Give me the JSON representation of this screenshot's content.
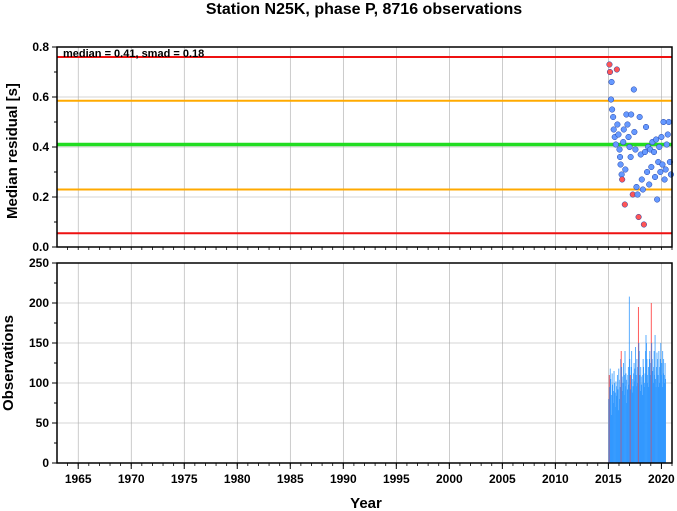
{
  "chart_data": [
    {
      "type": "scatter",
      "title": "Station N25K, phase P, 8716 observations",
      "ylabel": "Median residual [s]",
      "xlim": [
        1963,
        2021
      ],
      "ylim": [
        0,
        0.8
      ],
      "yticks": [
        "0.0",
        "0.2",
        "0.4",
        "0.6",
        "0.8"
      ],
      "grid": true,
      "annotation": "median = 0.41, smad = 0.18",
      "reference_lines": [
        {
          "y": 0.41,
          "color": "#22dd22"
        },
        {
          "y": 0.585,
          "color": "#ffaa00"
        },
        {
          "y": 0.23,
          "color": "#ffaa00"
        },
        {
          "y": 0.76,
          "color": "#ee1111"
        },
        {
          "y": 0.055,
          "color": "#ee1111"
        }
      ],
      "colors": {
        "normal": "#6699ff",
        "outlier": "#ff5555"
      },
      "points": [
        {
          "x": 2015.1,
          "y": 0.73,
          "outlier": true
        },
        {
          "x": 2015.15,
          "y": 0.7,
          "outlier": true
        },
        {
          "x": 2015.3,
          "y": 0.66,
          "outlier": false
        },
        {
          "x": 2015.25,
          "y": 0.59,
          "outlier": false
        },
        {
          "x": 2015.35,
          "y": 0.55,
          "outlier": false
        },
        {
          "x": 2015.45,
          "y": 0.52,
          "outlier": false
        },
        {
          "x": 2015.5,
          "y": 0.47,
          "outlier": false
        },
        {
          "x": 2015.6,
          "y": 0.44,
          "outlier": false
        },
        {
          "x": 2015.7,
          "y": 0.41,
          "outlier": false
        },
        {
          "x": 2015.8,
          "y": 0.71,
          "outlier": true
        },
        {
          "x": 2015.85,
          "y": 0.49,
          "outlier": false
        },
        {
          "x": 2015.95,
          "y": 0.45,
          "outlier": false
        },
        {
          "x": 2016.05,
          "y": 0.39,
          "outlier": false
        },
        {
          "x": 2016.1,
          "y": 0.36,
          "outlier": false
        },
        {
          "x": 2016.15,
          "y": 0.33,
          "outlier": false
        },
        {
          "x": 2016.25,
          "y": 0.29,
          "outlier": false
        },
        {
          "x": 2016.3,
          "y": 0.27,
          "outlier": true
        },
        {
          "x": 2016.4,
          "y": 0.42,
          "outlier": false
        },
        {
          "x": 2016.45,
          "y": 0.47,
          "outlier": false
        },
        {
          "x": 2016.55,
          "y": 0.17,
          "outlier": true
        },
        {
          "x": 2016.6,
          "y": 0.31,
          "outlier": false
        },
        {
          "x": 2016.7,
          "y": 0.53,
          "outlier": false
        },
        {
          "x": 2016.8,
          "y": 0.49,
          "outlier": false
        },
        {
          "x": 2016.9,
          "y": 0.44,
          "outlier": false
        },
        {
          "x": 2017.0,
          "y": 0.4,
          "outlier": false
        },
        {
          "x": 2017.1,
          "y": 0.36,
          "outlier": false
        },
        {
          "x": 2017.15,
          "y": 0.53,
          "outlier": false
        },
        {
          "x": 2017.3,
          "y": 0.21,
          "outlier": true
        },
        {
          "x": 2017.4,
          "y": 0.63,
          "outlier": false
        },
        {
          "x": 2017.45,
          "y": 0.46,
          "outlier": false
        },
        {
          "x": 2017.55,
          "y": 0.39,
          "outlier": false
        },
        {
          "x": 2017.65,
          "y": 0.24,
          "outlier": false
        },
        {
          "x": 2017.75,
          "y": 0.21,
          "outlier": false
        },
        {
          "x": 2017.85,
          "y": 0.12,
          "outlier": true
        },
        {
          "x": 2017.95,
          "y": 0.52,
          "outlier": false
        },
        {
          "x": 2018.05,
          "y": 0.37,
          "outlier": false
        },
        {
          "x": 2018.15,
          "y": 0.27,
          "outlier": false
        },
        {
          "x": 2018.25,
          "y": 0.23,
          "outlier": false
        },
        {
          "x": 2018.35,
          "y": 0.09,
          "outlier": true
        },
        {
          "x": 2018.45,
          "y": 0.38,
          "outlier": false
        },
        {
          "x": 2018.55,
          "y": 0.48,
          "outlier": false
        },
        {
          "x": 2018.65,
          "y": 0.3,
          "outlier": false
        },
        {
          "x": 2018.75,
          "y": 0.4,
          "outlier": false
        },
        {
          "x": 2018.85,
          "y": 0.25,
          "outlier": false
        },
        {
          "x": 2018.95,
          "y": 0.39,
          "outlier": false
        },
        {
          "x": 2019.05,
          "y": 0.32,
          "outlier": false
        },
        {
          "x": 2019.15,
          "y": 0.42,
          "outlier": false
        },
        {
          "x": 2019.3,
          "y": 0.38,
          "outlier": false
        },
        {
          "x": 2019.4,
          "y": 0.28,
          "outlier": false
        },
        {
          "x": 2019.5,
          "y": 0.43,
          "outlier": false
        },
        {
          "x": 2019.6,
          "y": 0.19,
          "outlier": false
        },
        {
          "x": 2019.7,
          "y": 0.34,
          "outlier": false
        },
        {
          "x": 2019.8,
          "y": 0.4,
          "outlier": false
        },
        {
          "x": 2019.9,
          "y": 0.3,
          "outlier": false
        },
        {
          "x": 2020.0,
          "y": 0.44,
          "outlier": false
        },
        {
          "x": 2020.1,
          "y": 0.33,
          "outlier": false
        },
        {
          "x": 2020.2,
          "y": 0.5,
          "outlier": false
        },
        {
          "x": 2020.3,
          "y": 0.27,
          "outlier": false
        },
        {
          "x": 2020.4,
          "y": 0.31,
          "outlier": false
        },
        {
          "x": 2020.5,
          "y": 0.41,
          "outlier": false
        },
        {
          "x": 2020.6,
          "y": 0.45,
          "outlier": false
        },
        {
          "x": 2020.7,
          "y": 0.5,
          "outlier": false
        },
        {
          "x": 2020.8,
          "y": 0.34,
          "outlier": false
        },
        {
          "x": 2020.9,
          "y": 0.29,
          "outlier": false
        }
      ]
    },
    {
      "type": "bar",
      "xlabel": "Year",
      "ylabel": "Observations",
      "xlim": [
        1963,
        2021
      ],
      "ylim": [
        0,
        250
      ],
      "xticks": [
        "1965",
        "1970",
        "1975",
        "1980",
        "1985",
        "1990",
        "1995",
        "2000",
        "2005",
        "2010",
        "2015",
        "2020"
      ],
      "yticks": [
        "0",
        "50",
        "100",
        "150",
        "200",
        "250"
      ],
      "grid": true,
      "colors": {
        "normal": "#3399ff",
        "outlier": "#ff3333"
      },
      "bar_start": 2015.0,
      "bar_width_years": 0.045,
      "values": [
        80,
        110,
        95,
        118,
        105,
        85,
        60,
        112,
        98,
        75,
        90,
        115,
        100,
        88,
        70,
        102,
        96,
        84,
        110,
        92,
        66,
        118,
        104,
        80,
        95,
        130,
        140,
        120,
        108,
        90,
        100,
        125,
        110,
        85,
        140,
        96,
        112,
        104,
        75,
        92,
        110,
        120,
        98,
        208,
        130,
        110,
        92,
        120,
        140,
        105,
        88,
        96,
        112,
        125,
        102,
        118,
        145,
        110,
        96,
        130,
        120,
        100,
        195,
        150,
        140,
        110,
        90,
        120,
        108,
        98,
        85,
        110,
        130,
        120,
        100,
        95,
        112,
        140,
        160,
        150,
        130,
        110,
        100,
        120,
        95,
        130,
        140,
        125,
        110,
        200,
        150,
        130,
        115,
        100,
        120,
        140,
        110,
        160,
        105,
        95,
        120,
        138,
        130,
        110,
        95,
        140,
        120,
        100,
        130,
        150,
        110,
        125,
        95,
        140,
        112,
        130,
        100,
        110,
        125,
        105
      ],
      "outlier_indices": [
        1,
        26,
        45,
        62,
        89
      ]
    }
  ]
}
